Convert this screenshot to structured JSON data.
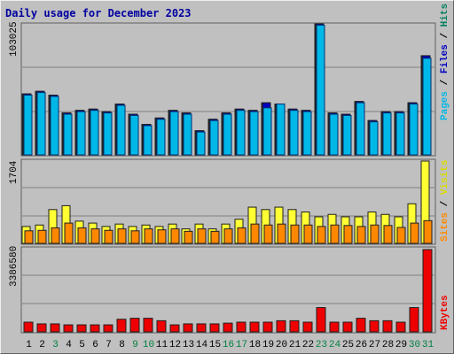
{
  "title": "Daily usage for December 2023",
  "colors": {
    "panel": "#c0c0c0",
    "grid": "#808080",
    "pages": "#00b8e8",
    "pages_border": "#003070",
    "hits": "#008060",
    "files": "#0000c0",
    "visits": "#ffff33",
    "sites": "#ff8800",
    "kbytes": "#ee0000",
    "day_normal": "#000000",
    "day_weekend": "#008040"
  },
  "panels": {
    "top": {
      "max_label": "103025",
      "ylabel_parts": [
        "Pages",
        " / ",
        "Files",
        " / ",
        "Hits"
      ]
    },
    "middle": {
      "max_label": "1704",
      "ylabel_parts": [
        "Sites",
        " / ",
        "Visits"
      ]
    },
    "bottom": {
      "max_label": "3386580",
      "ylabel_parts": [
        "KBytes"
      ]
    }
  },
  "days": [
    "1",
    "2",
    "3",
    "4",
    "5",
    "6",
    "7",
    "8",
    "9",
    "10",
    "11",
    "12",
    "13",
    "14",
    "15",
    "16",
    "17",
    "18",
    "19",
    "20",
    "21",
    "22",
    "23",
    "24",
    "25",
    "26",
    "27",
    "28",
    "29",
    "30",
    "31"
  ],
  "weekend_days": [
    3,
    9,
    10,
    16,
    17,
    23,
    24,
    30,
    31
  ],
  "chart_data": [
    {
      "type": "bar",
      "title": "Daily usage for December 2023",
      "categories": [
        "1",
        "2",
        "3",
        "4",
        "5",
        "6",
        "7",
        "8",
        "9",
        "10",
        "11",
        "12",
        "13",
        "14",
        "15",
        "16",
        "17",
        "18",
        "19",
        "20",
        "21",
        "22",
        "23",
        "24",
        "25",
        "26",
        "27",
        "28",
        "29",
        "30",
        "31"
      ],
      "ylim": [
        0,
        103025
      ],
      "series": [
        {
          "name": "Hits",
          "values": [
            48000,
            50000,
            47000,
            33000,
            35000,
            36000,
            34000,
            40000,
            32000,
            24000,
            29000,
            35000,
            33000,
            19000,
            28000,
            33000,
            36000,
            35000,
            41000,
            40000,
            36000,
            35000,
            103025,
            33000,
            32000,
            42000,
            27000,
            34000,
            34000,
            41000,
            78000
          ]
        },
        {
          "name": "Files",
          "values": [
            48000,
            50000,
            47000,
            33000,
            35000,
            36000,
            34000,
            40000,
            32000,
            24000,
            29000,
            35000,
            33000,
            19000,
            28000,
            33000,
            36000,
            35000,
            41000,
            40000,
            36000,
            35000,
            103025,
            33000,
            32000,
            42000,
            27000,
            34000,
            34000,
            41000,
            78000
          ]
        },
        {
          "name": "Pages",
          "values": [
            47000,
            49000,
            46000,
            32000,
            34000,
            35000,
            33000,
            39000,
            31000,
            23000,
            28000,
            34000,
            32000,
            18000,
            27000,
            32000,
            35000,
            34000,
            37000,
            40000,
            35000,
            34000,
            102000,
            32000,
            31000,
            41000,
            26000,
            33000,
            33000,
            40000,
            76000
          ]
        }
      ]
    },
    {
      "type": "bar",
      "categories": [
        "1",
        "2",
        "3",
        "4",
        "5",
        "6",
        "7",
        "8",
        "9",
        "10",
        "11",
        "12",
        "13",
        "14",
        "15",
        "16",
        "17",
        "18",
        "19",
        "20",
        "21",
        "22",
        "23",
        "24",
        "25",
        "26",
        "27",
        "28",
        "29",
        "30",
        "31"
      ],
      "ylim": [
        0,
        1704
      ],
      "series": [
        {
          "name": "Visits",
          "values": [
            350,
            380,
            700,
            780,
            460,
            420,
            350,
            400,
            350,
            380,
            350,
            400,
            300,
            400,
            300,
            400,
            500,
            750,
            700,
            750,
            700,
            650,
            550,
            600,
            550,
            550,
            650,
            600,
            550,
            820,
            1704
          ]
        },
        {
          "name": "Sites",
          "values": [
            260,
            270,
            320,
            420,
            320,
            300,
            270,
            300,
            260,
            300,
            280,
            300,
            250,
            300,
            250,
            300,
            320,
            400,
            380,
            400,
            380,
            380,
            350,
            380,
            370,
            350,
            380,
            370,
            330,
            420,
            470
          ]
        }
      ]
    },
    {
      "type": "bar",
      "categories": [
        "1",
        "2",
        "3",
        "4",
        "5",
        "6",
        "7",
        "8",
        "9",
        "10",
        "11",
        "12",
        "13",
        "14",
        "15",
        "16",
        "17",
        "18",
        "19",
        "20",
        "21",
        "22",
        "23",
        "24",
        "25",
        "26",
        "27",
        "28",
        "29",
        "30",
        "31"
      ],
      "ylim": [
        0,
        3386580
      ],
      "series": [
        {
          "name": "KBytes",
          "values": [
            400000,
            330000,
            330000,
            290000,
            290000,
            290000,
            290000,
            520000,
            560000,
            560000,
            460000,
            290000,
            330000,
            330000,
            330000,
            360000,
            400000,
            400000,
            400000,
            460000,
            460000,
            400000,
            1000000,
            400000,
            400000,
            560000,
            460000,
            460000,
            400000,
            1000000,
            3386580
          ]
        }
      ]
    }
  ]
}
